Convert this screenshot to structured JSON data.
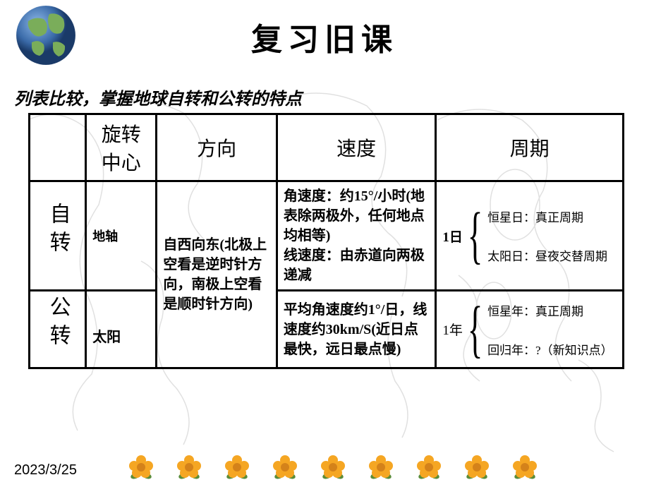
{
  "title": "复习旧课",
  "subtitle": "列表比较，掌握地球自转和公转的特点",
  "date": "2023/3/25",
  "table": {
    "headers": [
      "",
      "旋转中心",
      "方向",
      "速度",
      "周期"
    ],
    "rows": [
      {
        "label": "自转",
        "center": "地轴",
        "direction": "自西向东(北极上空看是逆时针方向，南极上空看是顺时针方向)",
        "speed": "角速度：约15°/小时(地表除两极外，任何地点均相等)\n线速度：由赤道向两极递减",
        "period_main": "1日",
        "period_items": [
          "恒星日：真正周期",
          "太阳日：昼夜交替周期"
        ]
      },
      {
        "label": "公转",
        "center": "太阳",
        "direction": "",
        "speed": "平均角速度约1°/日，线速度约30km/S(近日点最快，远日最点慢)",
        "period_main": "1年",
        "period_items": [
          "恒星年：真正周期",
          "回归年：?（新知识点）"
        ]
      }
    ]
  },
  "flower_count": 9,
  "colors": {
    "text": "#000000",
    "map_line": "#999999",
    "ocean": "#4a7ab8",
    "land": "#6b9b4a",
    "flower_petal": "#f5a623",
    "flower_center": "#d4821a",
    "flower_leaf": "#5a8c3a"
  }
}
